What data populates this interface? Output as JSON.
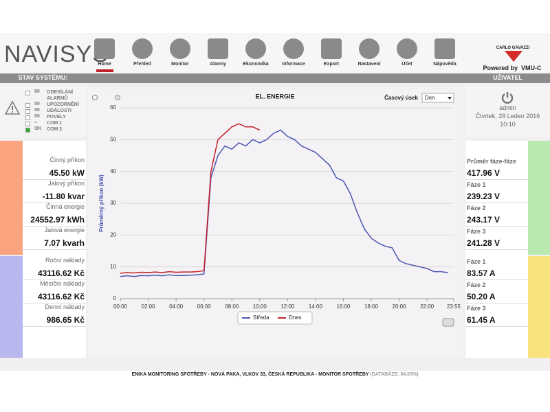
{
  "header": {
    "logo": "NAVISYS",
    "nav": [
      "Home",
      "Přehled",
      "Monitor",
      "Alarmy",
      "Ekonomika",
      "Informace",
      "Export",
      "Nastavení",
      "Účet",
      "Nápověda"
    ],
    "brand": "CARLO GAVAZZI",
    "powered": "Powered by  VMU-C"
  },
  "status": {
    "title": "STAV SYSTÉMU:",
    "items": [
      {
        "code": "00",
        "label": "ODESÍLÁNÍ ALARMŮ"
      },
      {
        "code": "00",
        "label": "UPOZORNĚNÍ"
      },
      {
        "code": "00",
        "label": "UDÁLOSTI"
      },
      {
        "code": "00",
        "label": "POVELY"
      },
      {
        "code": "--",
        "label": "COM 1"
      },
      {
        "code": "OK",
        "label": "COM 2"
      }
    ]
  },
  "user": {
    "title": "UŽIVATEL",
    "name": "admin",
    "date": "Čtvrtek, 28 Leden 2016",
    "time": "10:10"
  },
  "left_metrics": [
    {
      "label": "Činný příkon",
      "value": "45.50 kW"
    },
    {
      "label": "Jalový příkon",
      "value": "-11.80 kvar"
    },
    {
      "label": "Činná energie",
      "value": "24552.97 kWh"
    },
    {
      "label": "Jalová energie",
      "value": "7.07 kvarh"
    },
    {
      "label": "Roční náklady",
      "value": "43116.62 Kč"
    },
    {
      "label": "Měsíční náklady",
      "value": "43116.62 Kč"
    },
    {
      "label": "Denní náklady",
      "value": "986.65 Kč"
    }
  ],
  "right_metrics": [
    {
      "label": "Průměr fáze-fáze",
      "value": "417.96 V"
    },
    {
      "label": "Fáze 1",
      "value": "239.23 V"
    },
    {
      "label": "Fáze 2",
      "value": "243.17 V"
    },
    {
      "label": "Fáze 3",
      "value": "241.28 V"
    },
    {
      "label": "Fáze 1",
      "value": "83.57 A"
    },
    {
      "label": "Fáze 2",
      "value": "50.20 A"
    },
    {
      "label": "Fáze 3",
      "value": "61.45 A"
    }
  ],
  "chart_data": {
    "type": "line",
    "title": "EL. ENERGIE",
    "period_label": "Časový úsek",
    "period": "Den",
    "y_label": "Průměrný příkon (kW)",
    "grid": true,
    "x": [
      0,
      0.5,
      1,
      1.5,
      2,
      2.5,
      3,
      3.5,
      4,
      4.5,
      5,
      5.5,
      6,
      6.5,
      7,
      7.5,
      8,
      8.5,
      9,
      9.5,
      10,
      10.5,
      11,
      11.5,
      12,
      12.5,
      13,
      13.5,
      14,
      14.5,
      15,
      15.5,
      16,
      16.5,
      17,
      17.5,
      18,
      18.5,
      19,
      19.5,
      20,
      20.5,
      21,
      21.5,
      22,
      22.5,
      23,
      23.5
    ],
    "xlim": [
      0,
      23.9167
    ],
    "xticks": [
      {
        "value": 0,
        "label": "00:00"
      },
      {
        "value": 2,
        "label": "02:00"
      },
      {
        "value": 4,
        "label": "04:00"
      },
      {
        "value": 6,
        "label": "06:00"
      },
      {
        "value": 8,
        "label": "08:00"
      },
      {
        "value": 10,
        "label": "10:00"
      },
      {
        "value": 12,
        "label": "12:00"
      },
      {
        "value": 14,
        "label": "14:00"
      },
      {
        "value": 16,
        "label": "16:00"
      },
      {
        "value": 18,
        "label": "18:00"
      },
      {
        "value": 20,
        "label": "20:00"
      },
      {
        "value": 22,
        "label": "22:00"
      },
      {
        "value": 23.9167,
        "label": "23:55"
      }
    ],
    "ylim": [
      0,
      60
    ],
    "yticks": [
      0,
      10,
      20,
      30,
      40,
      50,
      60
    ],
    "series": [
      {
        "name": "Středa",
        "color": "#4a56b0",
        "values": [
          7,
          7.2,
          7,
          7.3,
          7.2,
          7.4,
          7.2,
          7.5,
          7.3,
          7.3,
          7.4,
          7.5,
          7.8,
          38,
          45,
          48,
          47,
          49,
          48,
          50,
          49,
          50,
          52,
          53,
          51,
          50,
          48,
          47,
          46,
          44,
          42,
          38,
          37,
          33,
          27,
          22,
          19,
          17.5,
          16.5,
          16,
          12,
          11,
          10.5,
          10,
          9.5,
          8.5,
          8.5,
          8.2
        ]
      },
      {
        "name": "Dnes",
        "color": "#c0202a",
        "values": [
          8,
          8.2,
          8.1,
          8.3,
          8.2,
          8.4,
          8.2,
          8.5,
          8.3,
          8.4,
          8.4,
          8.5,
          8.8,
          40,
          50,
          52,
          54,
          55,
          54,
          54,
          53,
          null,
          null,
          null,
          null,
          null,
          null,
          null,
          null,
          null,
          null,
          null,
          null,
          null,
          null,
          null,
          null,
          null,
          null,
          null,
          null,
          null,
          null,
          null,
          null,
          null,
          null,
          null
        ]
      }
    ]
  },
  "footer": {
    "text": "ENIKA MONITORING SPOTŘEBY - NOVÁ PAKA, VLKOV 33, ČESKÁ REPUBLIKA - MONITOR SPOTŘEBY",
    "db": "(DATABÁZE: 54.03%)"
  }
}
